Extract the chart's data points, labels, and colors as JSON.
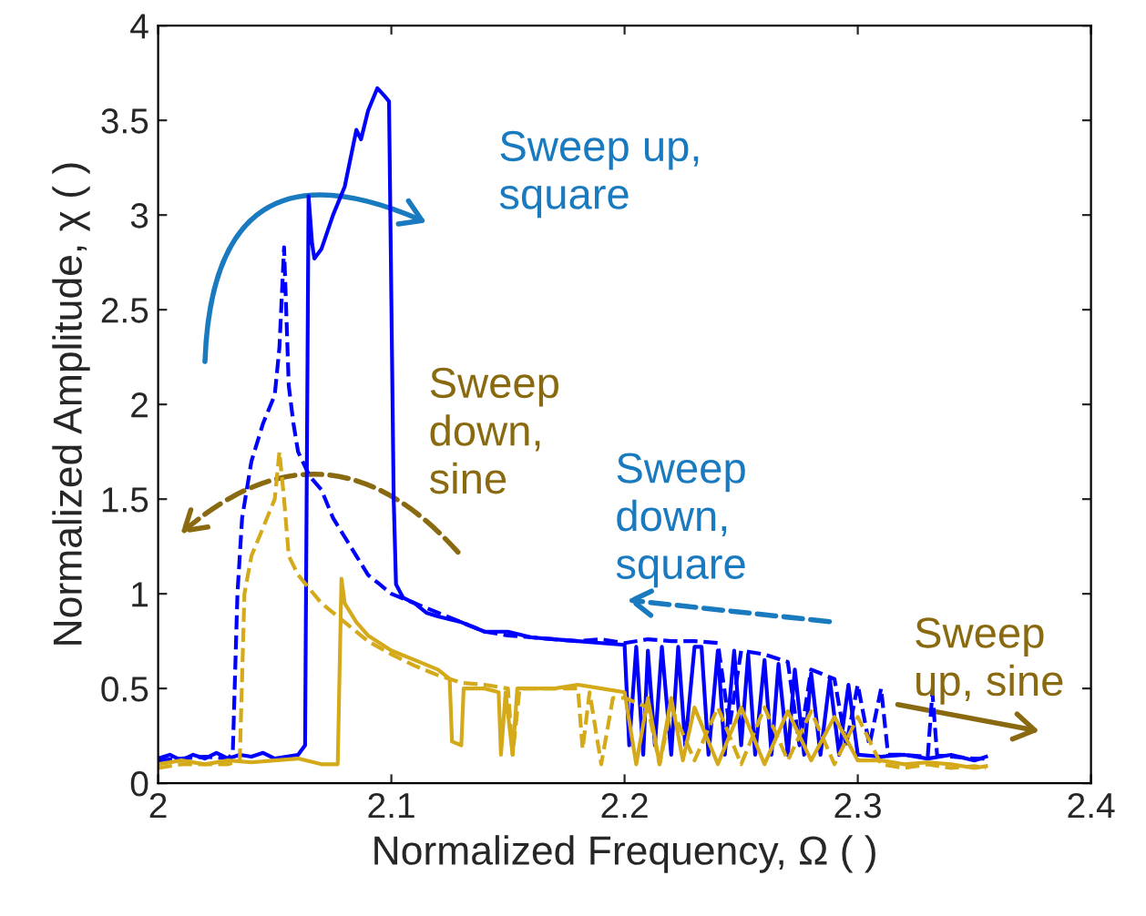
{
  "chart_data": {
    "type": "line",
    "xlabel": "Normalized Frequency, Ω ( )",
    "ylabel": "Normalized Amplitude, χ ( )",
    "xlim": [
      2,
      2.4
    ],
    "xticks": [
      2,
      2.1,
      2.2,
      2.3,
      2.4
    ],
    "ylim": [
      0,
      4
    ],
    "yticks": [
      0,
      0.5,
      1,
      1.5,
      2,
      2.5,
      3,
      3.5,
      4
    ],
    "grid": false,
    "marker": "none",
    "annotations": [
      "Sweep up,\nsquare",
      "Sweep\ndown,\nsine",
      "Sweep\ndown,\nsquare",
      "Sweep\nup, sine"
    ],
    "series": [
      {
        "color": "#0000ff",
        "line_style": "solid",
        "x": [
          2.0,
          2.005,
          2.01,
          2.015,
          2.02,
          2.025,
          2.03,
          2.035,
          2.04,
          2.045,
          2.05,
          2.055,
          2.06,
          2.063,
          2.0645,
          2.066,
          2.067,
          2.07,
          2.075,
          2.08,
          2.085,
          2.087,
          2.09,
          2.094,
          2.097,
          2.099,
          2.101,
          2.102,
          2.105,
          2.11,
          2.115,
          2.12,
          2.13,
          2.14,
          2.15,
          2.16,
          2.17,
          2.18,
          2.19,
          2.2,
          2.202,
          2.205,
          2.208,
          2.21,
          2.213,
          2.216,
          2.22,
          2.223,
          2.226,
          2.23,
          2.233,
          2.236,
          2.24,
          2.243,
          2.247,
          2.25,
          2.253,
          2.256,
          2.26,
          2.263,
          2.266,
          2.27,
          2.273,
          2.277,
          2.28,
          2.284,
          2.288,
          2.292,
          2.296,
          2.3,
          2.31,
          2.32,
          2.33,
          2.34,
          2.35,
          2.355
        ],
        "values": [
          0.13,
          0.15,
          0.12,
          0.15,
          0.13,
          0.16,
          0.13,
          0.15,
          0.14,
          0.16,
          0.13,
          0.14,
          0.15,
          0.2,
          3.1,
          2.85,
          2.77,
          2.82,
          3.0,
          3.15,
          3.45,
          3.4,
          3.55,
          3.67,
          3.63,
          3.6,
          1.5,
          1.05,
          0.98,
          0.95,
          0.9,
          0.88,
          0.85,
          0.8,
          0.8,
          0.77,
          0.76,
          0.75,
          0.74,
          0.73,
          0.2,
          0.72,
          0.15,
          0.7,
          0.2,
          0.72,
          0.15,
          0.72,
          0.2,
          0.72,
          0.72,
          0.15,
          0.7,
          0.15,
          0.7,
          0.2,
          0.68,
          0.15,
          0.65,
          0.15,
          0.63,
          0.15,
          0.6,
          0.15,
          0.58,
          0.15,
          0.55,
          0.15,
          0.52,
          0.15,
          0.14,
          0.15,
          0.13,
          0.15,
          0.12,
          0.14
        ]
      },
      {
        "color": "#0000ff",
        "line_style": "dashed",
        "x": [
          2.0,
          2.01,
          2.02,
          2.03,
          2.032,
          2.034,
          2.036,
          2.04,
          2.045,
          2.05,
          2.052,
          2.054,
          2.056,
          2.058,
          2.06,
          2.065,
          2.07,
          2.075,
          2.08,
          2.085,
          2.09,
          2.095,
          2.1,
          2.11,
          2.12,
          2.13,
          2.14,
          2.15,
          2.16,
          2.17,
          2.18,
          2.19,
          2.2,
          2.21,
          2.22,
          2.23,
          2.24,
          2.245,
          2.25,
          2.26,
          2.27,
          2.275,
          2.28,
          2.29,
          2.295,
          2.3,
          2.305,
          2.31,
          2.313,
          2.32,
          2.33,
          2.332,
          2.334,
          2.34,
          2.35,
          2.355
        ],
        "values": [
          0.12,
          0.13,
          0.14,
          0.13,
          0.16,
          1.0,
          1.4,
          1.7,
          1.9,
          2.05,
          2.3,
          2.83,
          2.1,
          1.9,
          1.75,
          1.62,
          1.55,
          1.4,
          1.3,
          1.2,
          1.1,
          1.05,
          1.0,
          0.95,
          0.9,
          0.85,
          0.8,
          0.78,
          0.77,
          0.76,
          0.75,
          0.76,
          0.74,
          0.76,
          0.75,
          0.75,
          0.74,
          0.3,
          0.7,
          0.68,
          0.64,
          0.2,
          0.6,
          0.55,
          0.2,
          0.52,
          0.2,
          0.5,
          0.15,
          0.15,
          0.14,
          0.48,
          0.15,
          0.14,
          0.13,
          0.13
        ]
      },
      {
        "color": "#d4aa1a",
        "line_style": "solid",
        "x": [
          2.0,
          2.01,
          2.02,
          2.03,
          2.04,
          2.05,
          2.06,
          2.07,
          2.077,
          2.0786,
          2.08,
          2.085,
          2.09,
          2.1,
          2.11,
          2.12,
          2.125,
          2.126,
          2.13,
          2.131,
          2.14,
          2.146,
          2.147,
          2.149,
          2.152,
          2.154,
          2.17,
          2.18,
          2.19,
          2.2,
          2.205,
          2.21,
          2.215,
          2.22,
          2.225,
          2.23,
          2.24,
          2.25,
          2.26,
          2.27,
          2.28,
          2.29,
          2.3,
          2.31,
          2.32,
          2.33,
          2.34,
          2.35,
          2.355
        ],
        "values": [
          0.1,
          0.12,
          0.1,
          0.12,
          0.11,
          0.12,
          0.13,
          0.1,
          0.1,
          1.08,
          0.95,
          0.85,
          0.78,
          0.7,
          0.65,
          0.6,
          0.55,
          0.22,
          0.2,
          0.5,
          0.5,
          0.48,
          0.15,
          0.48,
          0.15,
          0.5,
          0.5,
          0.52,
          0.5,
          0.48,
          0.1,
          0.45,
          0.1,
          0.45,
          0.12,
          0.4,
          0.1,
          0.4,
          0.1,
          0.38,
          0.12,
          0.35,
          0.12,
          0.12,
          0.1,
          0.11,
          0.1,
          0.08,
          0.09
        ]
      },
      {
        "color": "#d4aa1a",
        "line_style": "dashed",
        "x": [
          2.0,
          2.01,
          2.02,
          2.03,
          2.035,
          2.037,
          2.04,
          2.045,
          2.05,
          2.052,
          2.054,
          2.056,
          2.06,
          2.07,
          2.08,
          2.09,
          2.1,
          2.11,
          2.12,
          2.13,
          2.14,
          2.15,
          2.152,
          2.155,
          2.18,
          2.182,
          2.185,
          2.19,
          2.195,
          2.2,
          2.21,
          2.215,
          2.22,
          2.23,
          2.24,
          2.25,
          2.26,
          2.27,
          2.28,
          2.29,
          2.3,
          2.31,
          2.32,
          2.33,
          2.34,
          2.35,
          2.355
        ],
        "values": [
          0.08,
          0.1,
          0.1,
          0.1,
          0.12,
          1.0,
          1.2,
          1.35,
          1.5,
          1.75,
          1.5,
          1.2,
          1.1,
          0.95,
          0.85,
          0.75,
          0.68,
          0.62,
          0.57,
          0.53,
          0.52,
          0.5,
          0.15,
          0.5,
          0.5,
          0.18,
          0.48,
          0.1,
          0.45,
          0.45,
          0.4,
          0.1,
          0.4,
          0.12,
          0.4,
          0.1,
          0.4,
          0.12,
          0.38,
          0.1,
          0.35,
          0.1,
          0.08,
          0.1,
          0.08,
          0.09,
          0.08
        ]
      }
    ]
  }
}
